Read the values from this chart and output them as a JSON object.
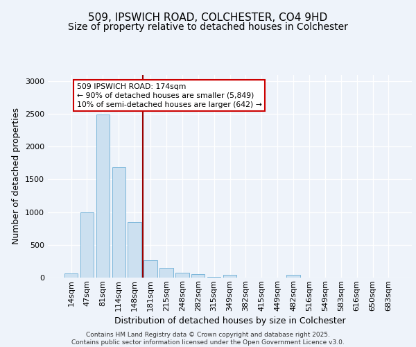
{
  "title_line1": "509, IPSWICH ROAD, COLCHESTER, CO4 9HD",
  "title_line2": "Size of property relative to detached houses in Colchester",
  "xlabel": "Distribution of detached houses by size in Colchester",
  "ylabel": "Number of detached properties",
  "categories": [
    "14sqm",
    "47sqm",
    "81sqm",
    "114sqm",
    "148sqm",
    "181sqm",
    "215sqm",
    "248sqm",
    "282sqm",
    "315sqm",
    "349sqm",
    "382sqm",
    "415sqm",
    "449sqm",
    "482sqm",
    "516sqm",
    "549sqm",
    "583sqm",
    "616sqm",
    "650sqm",
    "683sqm"
  ],
  "values": [
    60,
    1000,
    2490,
    1680,
    850,
    270,
    145,
    70,
    55,
    10,
    45,
    5,
    5,
    5,
    40,
    5,
    5,
    5,
    5,
    5,
    5
  ],
  "bar_color": "#cce0f0",
  "bar_edge_color": "#6baed6",
  "vline_x_idx": 5,
  "vline_color": "#990000",
  "annotation_text": "509 IPSWICH ROAD: 174sqm\n← 90% of detached houses are smaller (5,849)\n10% of semi-detached houses are larger (642) →",
  "annotation_box_edgecolor": "#cc0000",
  "ylim": [
    0,
    3100
  ],
  "yticks": [
    0,
    500,
    1000,
    1500,
    2000,
    2500,
    3000
  ],
  "footer_text": "Contains HM Land Registry data © Crown copyright and database right 2025.\nContains public sector information licensed under the Open Government Licence v3.0.",
  "background_color": "#eef3fa",
  "title_fontsize": 11,
  "subtitle_fontsize": 10,
  "tick_fontsize": 8,
  "ylabel_fontsize": 9,
  "xlabel_fontsize": 9
}
